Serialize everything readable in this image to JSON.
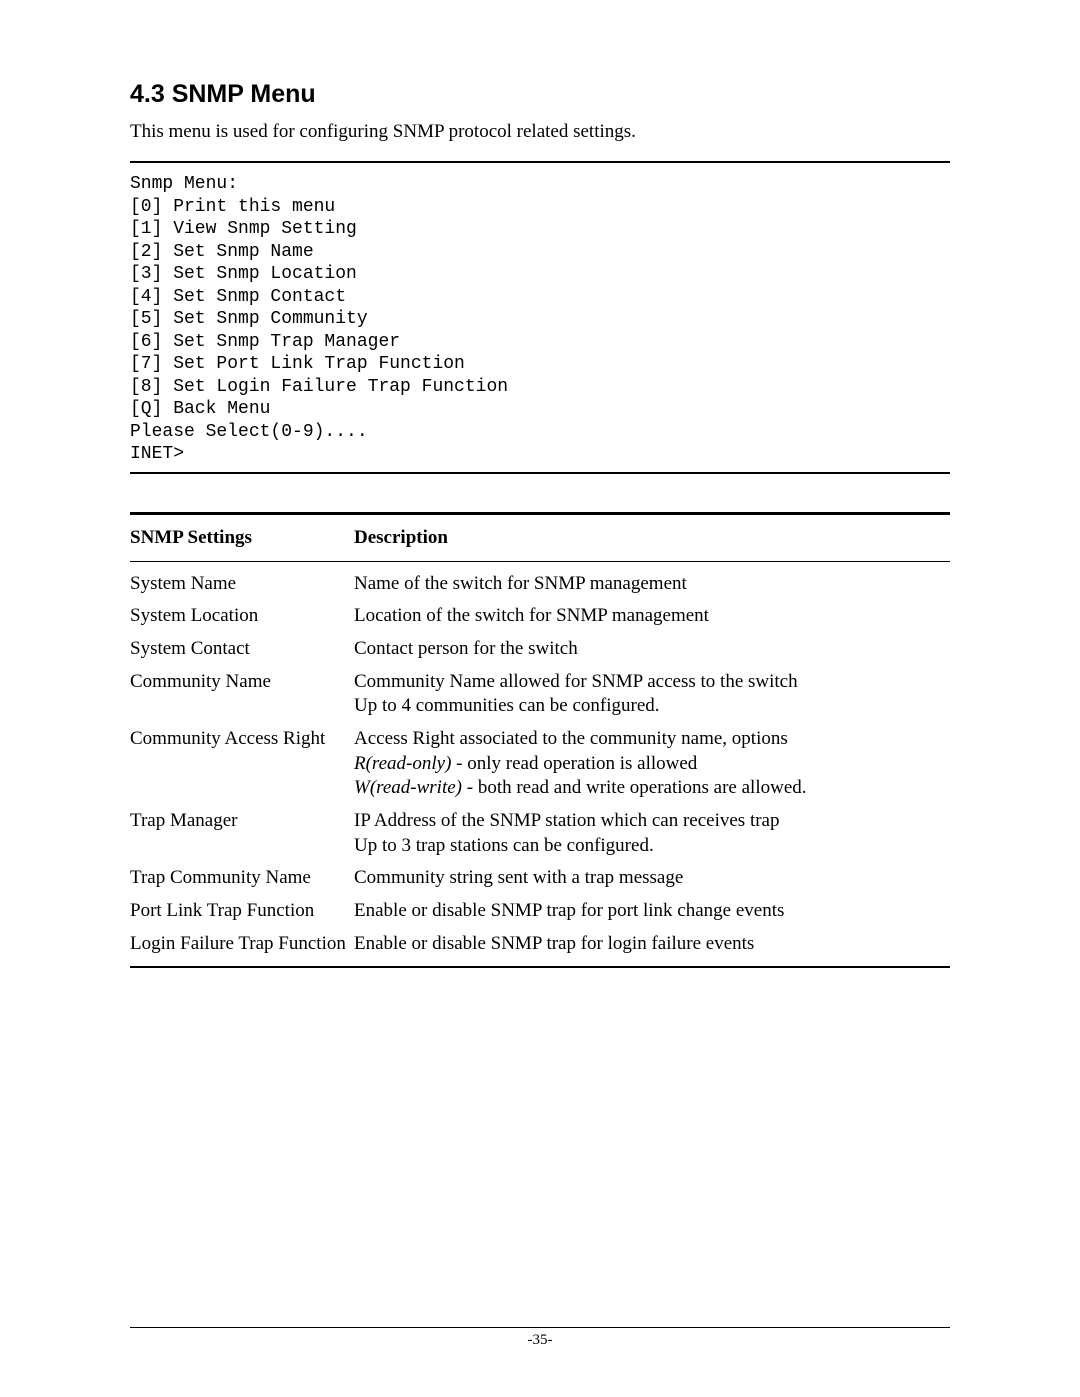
{
  "heading": "4.3 SNMP Menu",
  "intro": "This menu is used for configuring SNMP protocol related settings.",
  "menu": {
    "title": "Snmp Menu:",
    "items": [
      "[0] Print this menu",
      "[1] View Snmp Setting",
      "[2] Set Snmp Name",
      "[3] Set Snmp Location",
      "[4] Set Snmp Contact",
      "[5] Set Snmp Community",
      "[6] Set Snmp Trap Manager",
      "[7] Set Port Link Trap Function",
      "[8] Set Login Failure Trap Function",
      "[Q] Back Menu"
    ],
    "prompt1": "Please Select(0-9)....",
    "prompt2": "INET>"
  },
  "table": {
    "header_setting": "SNMP Settings",
    "header_desc": "Description",
    "rows": [
      {
        "setting": "System Name",
        "desc": "Name of the switch for SNMP management"
      },
      {
        "setting": "System Location",
        "desc": "Location of the switch for SNMP management"
      },
      {
        "setting": "System Contact",
        "desc": "Contact person for the switch"
      },
      {
        "setting": "Community Name",
        "desc": "Community Name allowed for SNMP access to the switch<br>Up to 4 communities can be configured."
      },
      {
        "setting": "Community Access Right",
        "desc": "Access Right associated to the community name, options<br><span class=\"italic\">R(read-only)</span> - only read operation is allowed<br><span class=\"italic\">W(read-write)</span> - both read and write operations are allowed."
      },
      {
        "setting": "Trap Manager",
        "desc": "IP Address of the SNMP station which can receives trap<br>Up to 3 trap stations can be configured."
      },
      {
        "setting": "Trap Community Name",
        "desc": "Community string sent with a trap message"
      },
      {
        "setting": "Port Link Trap Function",
        "desc": "Enable or disable SNMP trap for port link change events"
      },
      {
        "setting": "Login Failure Trap Function",
        "desc": "Enable or disable SNMP trap for login failure events"
      }
    ]
  },
  "page_number": "-35-"
}
